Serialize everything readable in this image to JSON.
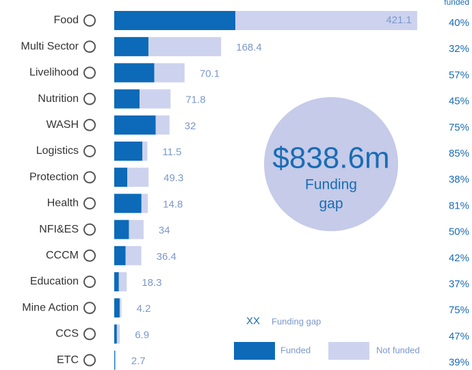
{
  "chart_data": {
    "type": "stacked_barh",
    "categories": [
      "Food",
      "Multi Sector",
      "Livelihood",
      "Nutrition",
      "WASH",
      "Logistics",
      "Protection",
      "Health",
      "NFI&ES",
      "CCCM",
      "Education",
      "Mine Action",
      "CCS",
      "ETC"
    ],
    "series": [
      {
        "name": "Funded",
        "color": "#0c6ab8",
        "values": [
          280.7,
          79.2,
          92.9,
          58.7,
          96,
          65.2,
          30.2,
          63.1,
          34,
          26.4,
          10.7,
          12.6,
          6.1,
          1.7
        ]
      },
      {
        "name": "Not funded",
        "color": "#cdd3ee",
        "values": [
          421.1,
          168.4,
          70.1,
          71.8,
          32,
          11.5,
          49.3,
          14.8,
          34,
          36.4,
          18.3,
          4.2,
          6.9,
          2.7
        ]
      }
    ],
    "xlim": [
      0,
      702
    ],
    "funded_percent": {
      "header": "funded",
      "values": [
        40,
        32,
        57,
        45,
        75,
        85,
        38,
        81,
        50,
        42,
        37,
        75,
        47,
        39
      ],
      "value_labels": [
        "40%",
        "32%",
        "57%",
        "45%",
        "75%",
        "85%",
        "38%",
        "81%",
        "50%",
        "42%",
        "37%",
        "75%",
        "47%",
        "39%"
      ]
    },
    "total_label": "$838.6m",
    "total_caption": [
      "Funding",
      "gap"
    ],
    "legend": {
      "sample": "XX",
      "sample_label": "Funding gap"
    }
  }
}
